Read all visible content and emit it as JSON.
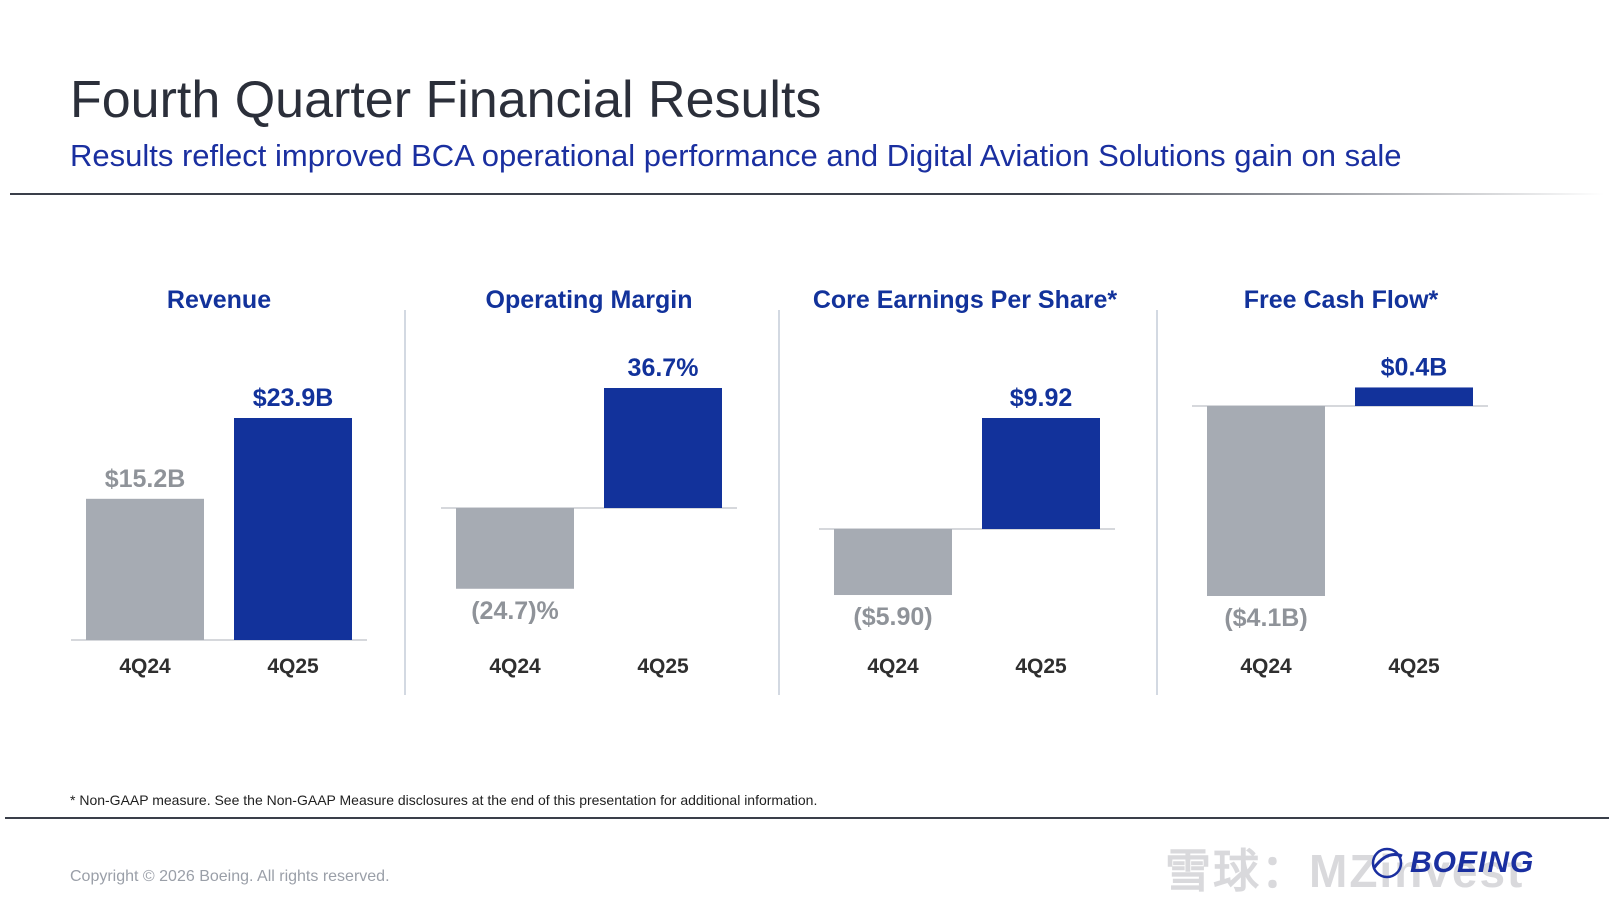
{
  "page": {
    "title": "Fourth Quarter Financial Results",
    "subtitle": "Results reflect improved BCA operational performance and Digital Aviation Solutions gain on sale",
    "footnote": "* Non-GAAP measure. See the Non-GAAP Measure disclosures at the end of this presentation for additional information.",
    "copyright": "Copyright © 2026 Boeing. All rights reserved.",
    "logo_text": "BOEING",
    "watermark_text": "雪球：MZinvest"
  },
  "colors": {
    "title": "#2b2f3a",
    "accent_blue": "#12329b",
    "prior_gray": "#a6abb3",
    "label_gray": "#8f9399",
    "axis_label": "#2f2f2f"
  },
  "chart_data": [
    {
      "type": "bar",
      "title": "Revenue",
      "categories": [
        "4Q24",
        "4Q25"
      ],
      "values": [
        15.2,
        23.9
      ],
      "value_labels": [
        "$15.2B",
        "$23.9B"
      ],
      "unit": "$B",
      "ylim": [
        0,
        25
      ],
      "grid": false
    },
    {
      "type": "bar",
      "title": "Operating Margin",
      "categories": [
        "4Q24",
        "4Q25"
      ],
      "values": [
        -24.7,
        36.7
      ],
      "value_labels": [
        "(24.7)%",
        "36.7%"
      ],
      "unit": "%",
      "ylim": [
        -40,
        40
      ],
      "grid": false
    },
    {
      "type": "bar",
      "title": "Core Earnings Per Share*",
      "categories": [
        "4Q24",
        "4Q25"
      ],
      "values": [
        -5.9,
        9.92
      ],
      "value_labels": [
        "($5.90)",
        "$9.92"
      ],
      "unit": "$",
      "ylim": [
        -10,
        10
      ],
      "grid": false
    },
    {
      "type": "bar",
      "title": "Free Cash Flow*",
      "categories": [
        "4Q24",
        "4Q25"
      ],
      "values": [
        -4.1,
        0.4
      ],
      "value_labels": [
        "($4.1B)",
        "$0.4B"
      ],
      "unit": "$B",
      "ylim": [
        -5,
        5
      ],
      "grid": false
    }
  ]
}
